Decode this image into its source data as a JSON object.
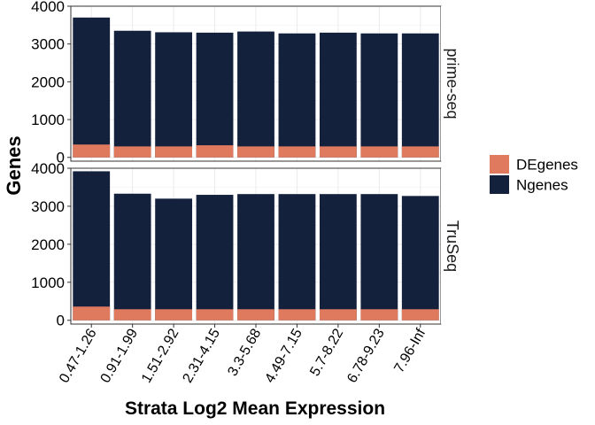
{
  "chart_data": {
    "type": "bar",
    "stacked": true,
    "xlabel": "Strata Log2 Mean Expression",
    "ylabel": "Genes",
    "ylim": [
      -100,
      4000
    ],
    "yticks": [
      0,
      1000,
      2000,
      3000,
      4000
    ],
    "grid": true,
    "legend_position": "right",
    "categories": [
      "0.47-1.26",
      "0.91-1.99",
      "1.51-2.92",
      "2.31-4.15",
      "3.3-5.68",
      "4.49-7.15",
      "5.7-8.22",
      "6.78-9.23",
      "7.96-Inf"
    ],
    "facets": [
      {
        "label": "prime-seq",
        "series": [
          {
            "name": "Ngenes",
            "values": [
              3700,
              3350,
              3310,
              3300,
              3330,
              3280,
              3300,
              3280,
              3280
            ]
          },
          {
            "name": "DEgenes",
            "values": [
              340,
              290,
              290,
              320,
              290,
              290,
              290,
              290,
              290
            ]
          }
        ]
      },
      {
        "label": "TruSeq",
        "series": [
          {
            "name": "Ngenes",
            "values": [
              3920,
              3330,
              3200,
              3300,
              3320,
              3320,
              3320,
              3320,
              3270
            ]
          },
          {
            "name": "DEgenes",
            "values": [
              360,
              290,
              290,
              290,
              290,
              290,
              290,
              290,
              290
            ]
          }
        ]
      }
    ],
    "legend": [
      {
        "name": "DEgenes",
        "color": "#E07A5F"
      },
      {
        "name": "Ngenes",
        "color": "#14213D"
      }
    ]
  }
}
